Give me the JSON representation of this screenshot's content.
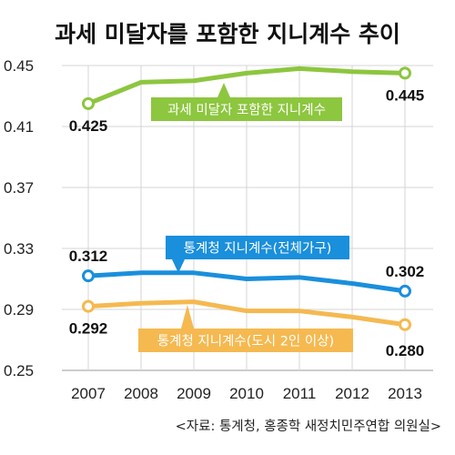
{
  "chart_data": {
    "type": "line",
    "title": "과세 미달자를 포함한 지니계수 추이",
    "categories": [
      "2007",
      "2008",
      "2009",
      "2010",
      "2011",
      "2012",
      "2013"
    ],
    "ylim": [
      0.25,
      0.45
    ],
    "yticks": [
      "0.45",
      "0.41",
      "0.37",
      "0.33",
      "0.29",
      "0.25"
    ],
    "grid": true,
    "series": [
      {
        "name": "과세 미달자 포함한 지니계수",
        "color": "#8dc63f",
        "values": [
          0.425,
          0.439,
          0.44,
          0.445,
          0.448,
          0.446,
          0.445
        ],
        "start_label": "0.425",
        "end_label": "0.445"
      },
      {
        "name": "통계청 지니계수(전체가구)",
        "color": "#1a8fdc",
        "values": [
          0.312,
          0.314,
          0.314,
          0.31,
          0.311,
          0.307,
          0.302
        ],
        "start_label": "0.312",
        "end_label": "0.302"
      },
      {
        "name": "통계청 지니계수(도시 2인 이상)",
        "color": "#f5b950",
        "values": [
          0.292,
          0.294,
          0.295,
          0.289,
          0.289,
          0.285,
          0.28
        ],
        "start_label": "0.292",
        "end_label": "0.280"
      }
    ],
    "source": "<자료: 통계청, 홍종학 새정치민주연합 의원실>"
  }
}
